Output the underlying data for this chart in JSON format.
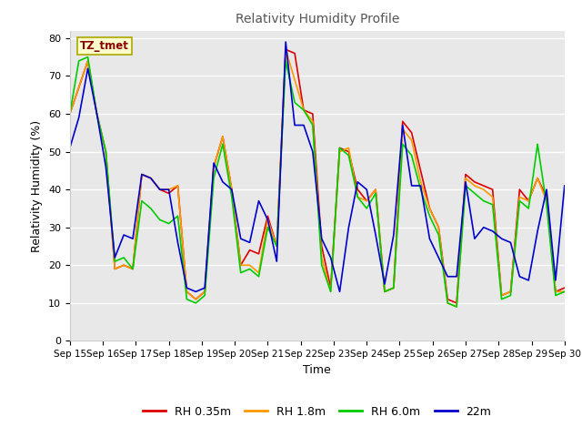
{
  "title": "Relativity Humidity Profile",
  "xlabel": "Time",
  "ylabel": "Relativity Humidity (%)",
  "annotation": "TZ_tmet",
  "ylim": [
    0,
    82
  ],
  "yticks": [
    0,
    10,
    20,
    30,
    40,
    50,
    60,
    70,
    80
  ],
  "x_labels": [
    "Sep 15",
    "Sep 16",
    "Sep 17",
    "Sep 18",
    "Sep 19",
    "Sep 20",
    "Sep 21",
    "Sep 22",
    "Sep 23",
    "Sep 24",
    "Sep 25",
    "Sep 26",
    "Sep 27",
    "Sep 28",
    "Sep 29",
    "Sep 30"
  ],
  "series_colors": [
    "#dd0000",
    "#ff9900",
    "#00cc00",
    "#0000cc"
  ],
  "series_labels": [
    "RH 0.35m",
    "RH 1.8m",
    "RH 6.0m",
    "22m"
  ],
  "plot_bg_color": "#e8e8e8",
  "fig_bg_color": "#ffffff",
  "grid_color": "#ffffff",
  "line_width": 1.2,
  "title_color": "#555555",
  "rh035": [
    60,
    67,
    74,
    60,
    50,
    19,
    20,
    19,
    44,
    43,
    40,
    39,
    41,
    13,
    11,
    13,
    46,
    54,
    40,
    20,
    24,
    23,
    33,
    25,
    77,
    76,
    61,
    60,
    25,
    14,
    51,
    50,
    40,
    37,
    40,
    13,
    14,
    58,
    55,
    45,
    35,
    30,
    11,
    10,
    44,
    42,
    41,
    40,
    12,
    13,
    40,
    37,
    43,
    38,
    13,
    14
  ],
  "rh18": [
    60,
    67,
    74,
    60,
    50,
    19,
    20,
    19,
    44,
    43,
    40,
    40,
    41,
    13,
    11,
    13,
    46,
    54,
    40,
    20,
    20,
    18,
    32,
    25,
    77,
    69,
    61,
    58,
    22,
    13,
    50,
    51,
    38,
    37,
    40,
    13,
    14,
    56,
    53,
    42,
    35,
    30,
    10,
    9,
    43,
    41,
    40,
    38,
    12,
    13,
    38,
    37,
    43,
    37,
    13,
    13
  ],
  "rh60": [
    60,
    74,
    75,
    60,
    50,
    21,
    22,
    19,
    37,
    35,
    32,
    31,
    33,
    11,
    10,
    12,
    43,
    52,
    38,
    18,
    19,
    17,
    30,
    25,
    74,
    63,
    61,
    57,
    20,
    13,
    51,
    49,
    38,
    35,
    39,
    13,
    14,
    52,
    49,
    40,
    33,
    28,
    10,
    9,
    41,
    39,
    37,
    36,
    11,
    12,
    37,
    35,
    52,
    36,
    12,
    13
  ],
  "rh22": [
    51,
    59,
    72,
    60,
    46,
    22,
    28,
    27,
    44,
    43,
    40,
    40,
    26,
    14,
    13,
    14,
    47,
    42,
    40,
    27,
    26,
    37,
    32,
    21,
    79,
    57,
    57,
    50,
    27,
    22,
    13,
    30,
    42,
    40,
    28,
    15,
    28,
    57,
    41,
    41,
    27,
    22,
    17,
    17,
    42,
    27,
    30,
    29,
    27,
    26,
    17,
    16,
    29,
    40,
    16,
    41
  ],
  "n_points": 56
}
